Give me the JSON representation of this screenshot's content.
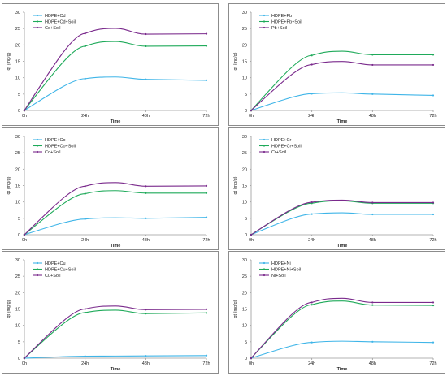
{
  "colors": {
    "series1": "#3fb5e8",
    "series2": "#1faa5a",
    "series3": "#7a2a8c",
    "axis": "#9a9a9a",
    "text": "#222222"
  },
  "chart_data": [
    {
      "type": "line",
      "x": [
        "0h",
        "24h",
        "48h",
        "72h"
      ],
      "xlabel": "Time",
      "ylabel": "qt (mg/g)",
      "ylim": [
        0,
        30
      ],
      "yticks": [
        0,
        5,
        10,
        15,
        20,
        25,
        30
      ],
      "legend_position": "top-left",
      "grid": false,
      "series": [
        {
          "name": "HDPE+Cd",
          "values": [
            0,
            9.7,
            9.5,
            9.2
          ]
        },
        {
          "name": "HDPE+Cd+Soil",
          "values": [
            0,
            19.6,
            19.6,
            19.7
          ]
        },
        {
          "name": "Cd+Soil",
          "values": [
            0,
            23.5,
            23.3,
            23.4
          ]
        }
      ]
    },
    {
      "type": "line",
      "x": [
        "0h",
        "24h",
        "48h",
        "72h"
      ],
      "xlabel": "Time",
      "ylabel": "qt (mg/g)",
      "ylim": [
        0,
        30
      ],
      "yticks": [
        0,
        5,
        10,
        15,
        20,
        25,
        30
      ],
      "legend_position": "top-left",
      "grid": false,
      "series": [
        {
          "name": "HDPE+Pb",
          "values": [
            0,
            5.1,
            5.0,
            4.6
          ]
        },
        {
          "name": "HDPE+Pb+Soil",
          "values": [
            0,
            16.8,
            17.0,
            17.0
          ]
        },
        {
          "name": "Pb+Soil",
          "values": [
            0,
            14.0,
            13.9,
            13.9
          ]
        }
      ]
    },
    {
      "type": "line",
      "x": [
        "0h",
        "24h",
        "48h",
        "72h"
      ],
      "xlabel": "Time",
      "ylabel": "qt (mg/g)",
      "ylim": [
        0,
        30
      ],
      "yticks": [
        0,
        5,
        10,
        15,
        20,
        25,
        30
      ],
      "legend_position": "top-left",
      "grid": false,
      "series": [
        {
          "name": "HDPE+Co",
          "values": [
            0,
            4.8,
            5.0,
            5.3
          ]
        },
        {
          "name": "HDPE+Co+Soil",
          "values": [
            0,
            12.5,
            12.7,
            12.7
          ]
        },
        {
          "name": "Co+Soil",
          "values": [
            0,
            14.8,
            14.8,
            14.9
          ]
        }
      ]
    },
    {
      "type": "line",
      "x": [
        "0h",
        "24h",
        "48h",
        "72h"
      ],
      "xlabel": "Time",
      "ylabel": "qt (mg/g)",
      "ylim": [
        0,
        30
      ],
      "yticks": [
        0,
        5,
        10,
        15,
        20,
        25,
        30
      ],
      "legend_position": "top-left",
      "grid": false,
      "series": [
        {
          "name": "HDPE+Cr",
          "values": [
            0,
            6.3,
            6.2,
            6.2
          ]
        },
        {
          "name": "HDPE+Cr+Soil",
          "values": [
            0,
            9.6,
            9.6,
            9.6
          ]
        },
        {
          "name": "Cr+Soil",
          "values": [
            0,
            9.9,
            9.8,
            9.8
          ]
        }
      ]
    },
    {
      "type": "line",
      "x": [
        "0h",
        "24h",
        "48h",
        "72h"
      ],
      "xlabel": "Time",
      "ylabel": "qt (mg/g)",
      "ylim": [
        0,
        30
      ],
      "yticks": [
        0,
        5,
        10,
        15,
        20,
        25,
        30
      ],
      "legend_position": "top-left",
      "grid": false,
      "series": [
        {
          "name": "HDPE+Cu",
          "values": [
            0,
            0.6,
            0.7,
            0.8
          ]
        },
        {
          "name": "HDPE+Cu+Soil",
          "values": [
            0,
            13.9,
            13.6,
            13.8
          ]
        },
        {
          "name": "Cu+Soil",
          "values": [
            0,
            15.0,
            14.8,
            14.9
          ]
        }
      ]
    },
    {
      "type": "line",
      "x": [
        "0h",
        "24h",
        "48h",
        "72h"
      ],
      "xlabel": "Time",
      "ylabel": "qt (mg/g)",
      "ylim": [
        0,
        30
      ],
      "yticks": [
        0,
        5,
        10,
        15,
        20,
        25,
        30
      ],
      "legend_position": "top-left",
      "grid": false,
      "series": [
        {
          "name": "HDPE+Ni",
          "values": [
            0,
            4.8,
            5.0,
            4.8
          ]
        },
        {
          "name": "HDPE+Ni+Soil",
          "values": [
            0,
            16.3,
            16.2,
            16.1
          ]
        },
        {
          "name": "Ni+Soil",
          "values": [
            0,
            17.0,
            17.0,
            17.0
          ]
        }
      ]
    }
  ]
}
